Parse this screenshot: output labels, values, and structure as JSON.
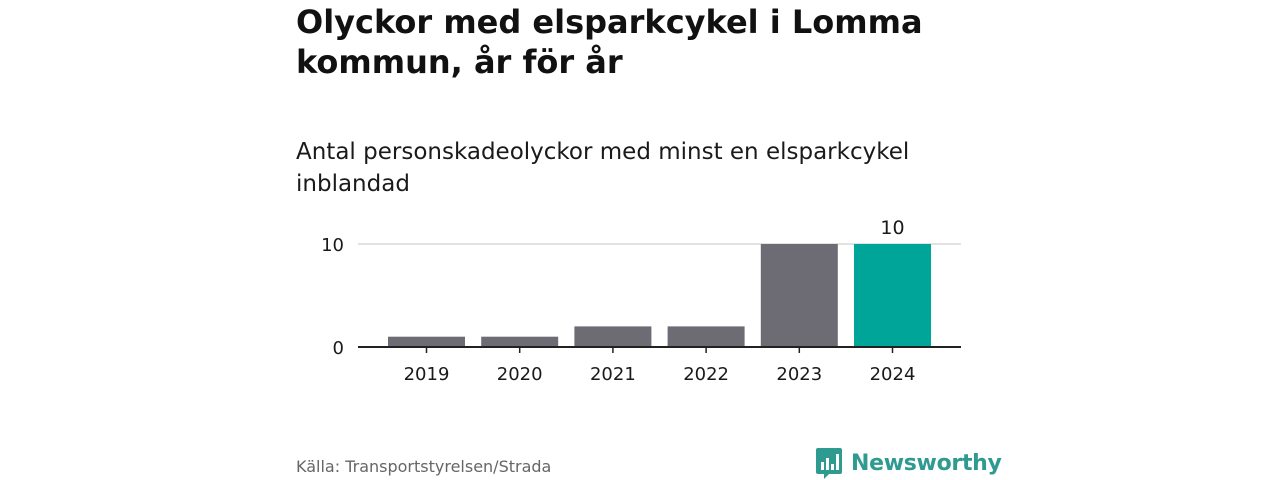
{
  "header": {
    "title": "Olyckor med elsparkcykel i Lomma kommun, år för år",
    "subtitle": "Antal personskadeolyckor med minst en elsparkcykel inblandad"
  },
  "footer": {
    "source": "Källa: Transportstyrelsen/Strada",
    "brand": "Newsworthy"
  },
  "colors": {
    "bar_default": "#6d6c74",
    "bar_highlight": "#00a599",
    "brand": "#2f9a8f"
  },
  "chart_data": {
    "type": "bar",
    "categories": [
      "2019",
      "2020",
      "2021",
      "2022",
      "2023",
      "2024"
    ],
    "values": [
      1,
      1,
      2,
      2,
      10,
      10
    ],
    "highlight_index": 5,
    "data_labels": [
      {
        "category": "2024",
        "text": "10"
      }
    ],
    "y_ticks": [
      "0",
      "10"
    ],
    "ylim": [
      0,
      10
    ],
    "grid": true,
    "legend": "none"
  }
}
